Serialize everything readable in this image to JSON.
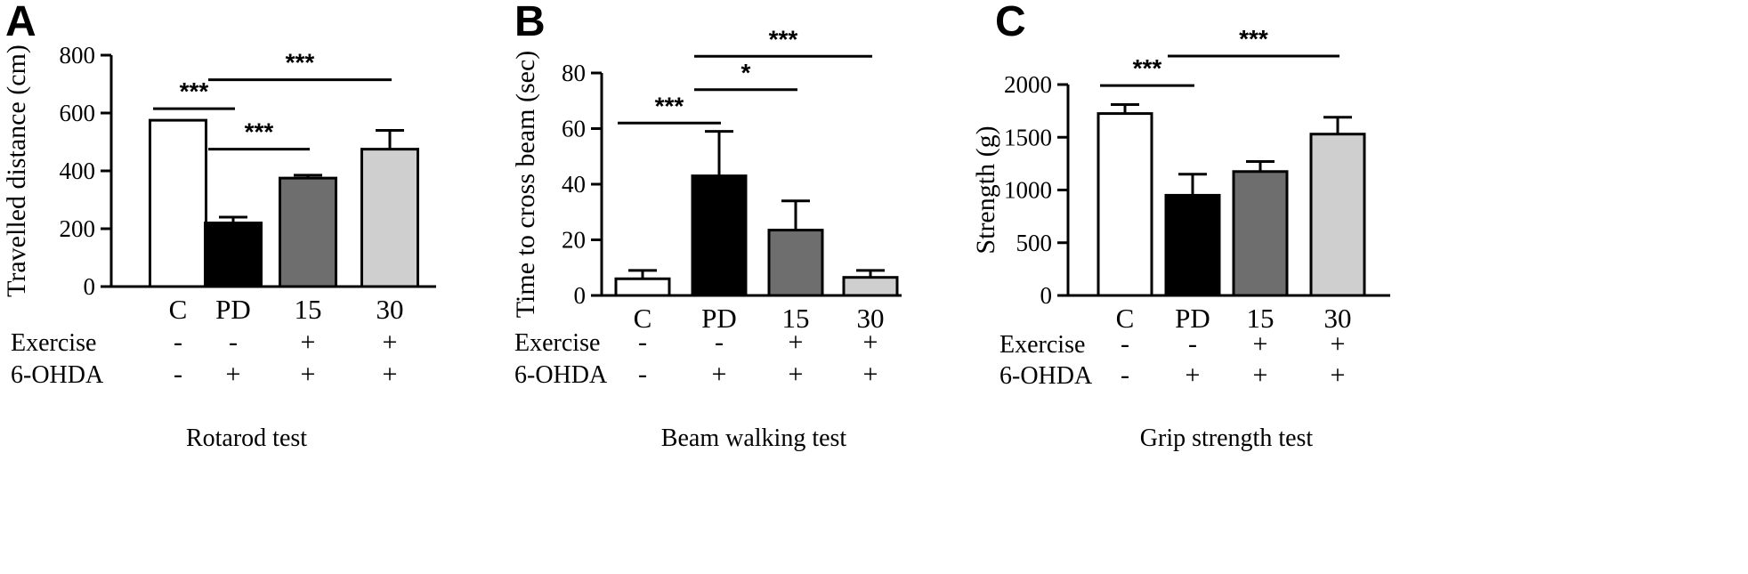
{
  "chart_data": [
    {
      "type": "bar",
      "panel": "A",
      "caption": "Rotarod test",
      "ylabel": "Travelled distance (cm)",
      "ylim": [
        0,
        800
      ],
      "yticks": [
        0,
        200,
        400,
        600,
        800
      ],
      "categories": [
        "C",
        "PD",
        "15",
        "30"
      ],
      "values": [
        575,
        220,
        375,
        475
      ],
      "errors": [
        0,
        20,
        10,
        65
      ],
      "colors": [
        "#ffffff",
        "#000000",
        "#6e6e6e",
        "#cfcfcf"
      ],
      "rows": [
        {
          "label": "Exercise",
          "signs": [
            "-",
            "-",
            "+",
            "+"
          ]
        },
        {
          "label": "6-OHDA",
          "signs": [
            "-",
            "+",
            "+",
            "+"
          ]
        }
      ],
      "significance": [
        {
          "from": 0,
          "to": 1,
          "y": 615,
          "label": "***"
        },
        {
          "from": 1,
          "to": 2,
          "y": 475,
          "label": "***"
        },
        {
          "from": 1,
          "to": 3,
          "y": 715,
          "label": "***"
        }
      ]
    },
    {
      "type": "bar",
      "panel": "B",
      "caption": "Beam walking test",
      "ylabel": "Time to cross beam (sec)",
      "ylim": [
        0,
        80
      ],
      "yticks": [
        0,
        20,
        40,
        60,
        80
      ],
      "categories": [
        "C",
        "PD",
        "15",
        "30"
      ],
      "values": [
        6,
        43,
        23.5,
        6.5
      ],
      "errors": [
        3,
        16,
        10.5,
        2.5
      ],
      "colors": [
        "#ffffff",
        "#000000",
        "#6e6e6e",
        "#cfcfcf"
      ],
      "rows": [
        {
          "label": "Exercise",
          "signs": [
            "-",
            "-",
            "+",
            "+"
          ]
        },
        {
          "label": "6-OHDA",
          "signs": [
            "-",
            "+",
            "+",
            "+"
          ]
        }
      ],
      "significance": [
        {
          "from": 0,
          "to": 1,
          "y": 62,
          "label": "***"
        },
        {
          "from": 1,
          "to": 2,
          "y": 74,
          "label": "*"
        },
        {
          "from": 1,
          "to": 3,
          "y": 86,
          "label": "***"
        }
      ]
    },
    {
      "type": "bar",
      "panel": "C",
      "caption": "Grip strength test",
      "ylabel": "Strength (g)",
      "ylim": [
        0,
        2000
      ],
      "yticks": [
        0,
        500,
        1000,
        1500,
        2000
      ],
      "categories": [
        "C",
        "PD",
        "15",
        "30"
      ],
      "values": [
        1725,
        950,
        1175,
        1530
      ],
      "errors": [
        85,
        200,
        95,
        160
      ],
      "colors": [
        "#ffffff",
        "#000000",
        "#6e6e6e",
        "#cfcfcf"
      ],
      "rows": [
        {
          "label": "Exercise",
          "signs": [
            "-",
            "-",
            "+",
            "+"
          ]
        },
        {
          "label": "6-OHDA",
          "signs": [
            "-",
            "+",
            "+",
            "+"
          ]
        }
      ],
      "significance": [
        {
          "from": 0,
          "to": 1,
          "y": 1990,
          "label": "***"
        },
        {
          "from": 1,
          "to": 3,
          "y": 2270,
          "label": "***"
        }
      ]
    }
  ]
}
